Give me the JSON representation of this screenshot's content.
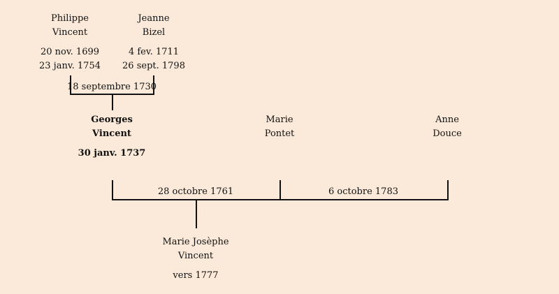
{
  "persons": {
    "philippe": {
      "first": "Philippe",
      "last": "Vincent",
      "birth": "20 nov. 1699",
      "death": "23 janv. 1754"
    },
    "jeanne": {
      "first": "Jeanne",
      "last": "Bizel",
      "birth": "4 fev. 1711",
      "death": "26 sept. 1798"
    },
    "georges": {
      "first": "Georges",
      "last": "Vincent",
      "birth": "30 janv. 1737"
    },
    "marie": {
      "first": "Marie",
      "last": "Pontet"
    },
    "anne": {
      "first": "Anne",
      "last": "Douce"
    },
    "mariejo": {
      "first": "Marie Josèphe",
      "last": "Vincent",
      "birth": "vers 1777"
    }
  },
  "marriages": {
    "parents": "18 septembre 1730",
    "first": "28 octobre 1761",
    "second": "6 octobre 1783"
  },
  "colors": {
    "background": "#fbead9",
    "line": "#111111"
  }
}
